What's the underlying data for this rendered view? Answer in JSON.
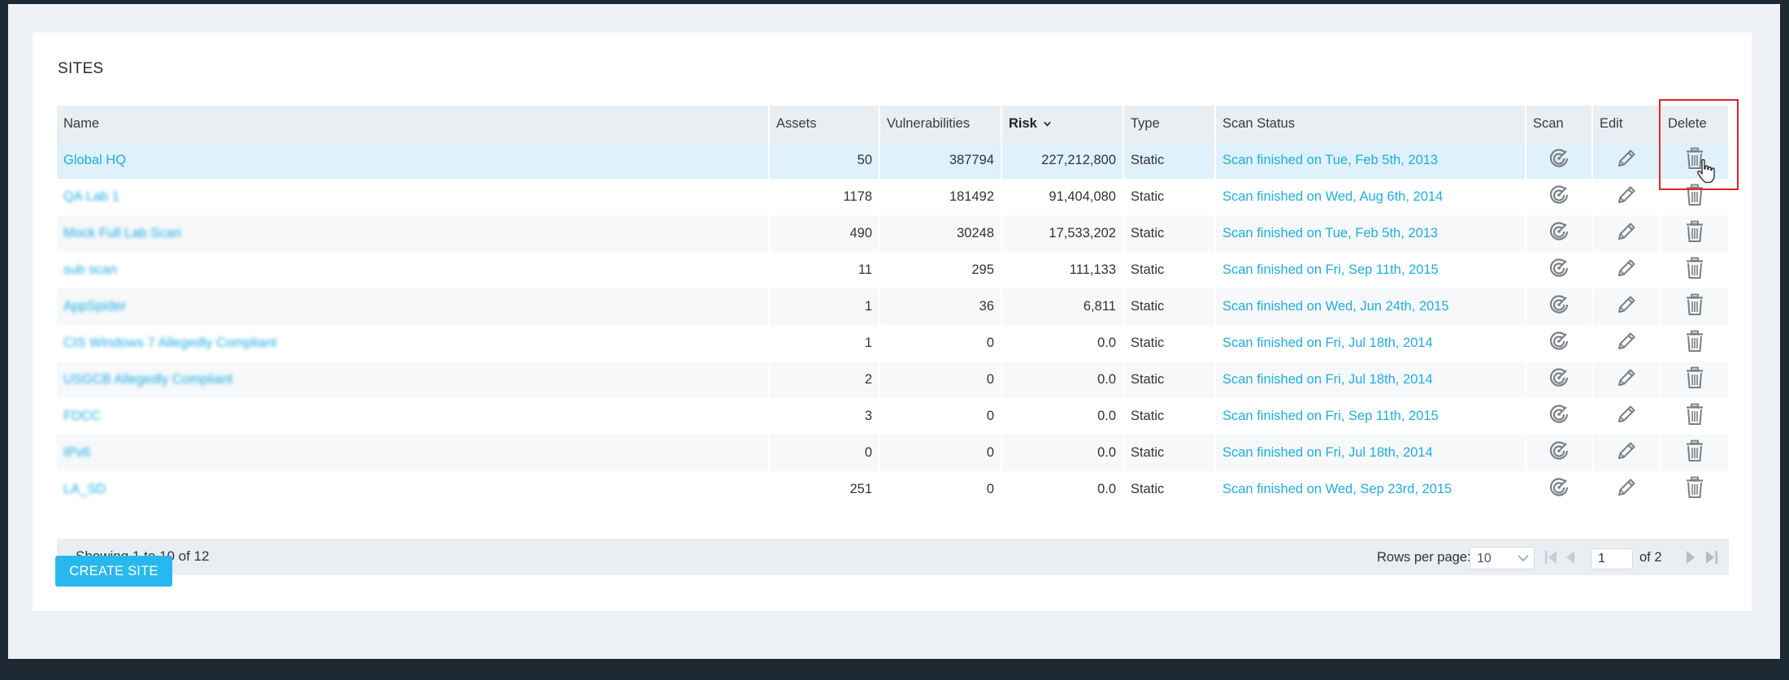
{
  "page": {
    "title": "SITES",
    "create_button": "CREATE SITE"
  },
  "table": {
    "columns": {
      "name": "Name",
      "assets": "Assets",
      "vulnerabilities": "Vulnerabilities",
      "risk": "Risk",
      "type": "Type",
      "scan_status": "Scan Status",
      "scan": "Scan",
      "edit": "Edit",
      "delete": "Delete"
    },
    "sorted_column": "Risk",
    "sort_direction": "descending",
    "rows": [
      {
        "name": "Global HQ",
        "name_blurred": false,
        "selected": true,
        "assets": "50",
        "vulnerabilities": "387794",
        "risk": "227,212,800",
        "type": "Static",
        "status": "Scan finished on Tue, Feb 5th, 2013"
      },
      {
        "name": "QA Lab 1",
        "name_blurred": true,
        "selected": false,
        "assets": "1178",
        "vulnerabilities": "181492",
        "risk": "91,404,080",
        "type": "Static",
        "status": "Scan finished on Wed, Aug 6th, 2014"
      },
      {
        "name": "Mock Full Lab Scan",
        "name_blurred": true,
        "selected": false,
        "assets": "490",
        "vulnerabilities": "30248",
        "risk": "17,533,202",
        "type": "Static",
        "status": "Scan finished on Tue, Feb 5th, 2013"
      },
      {
        "name": "sub scan",
        "name_blurred": true,
        "selected": false,
        "assets": "11",
        "vulnerabilities": "295",
        "risk": "111,133",
        "type": "Static",
        "status": "Scan finished on Fri, Sep 11th, 2015"
      },
      {
        "name": "AppSpider",
        "name_blurred": true,
        "selected": false,
        "assets": "1",
        "vulnerabilities": "36",
        "risk": "6,811",
        "type": "Static",
        "status": "Scan finished on Wed, Jun 24th, 2015"
      },
      {
        "name": "CIS Windows 7 Allegedly Compliant",
        "name_blurred": true,
        "selected": false,
        "assets": "1",
        "vulnerabilities": "0",
        "risk": "0.0",
        "type": "Static",
        "status": "Scan finished on Fri, Jul 18th, 2014"
      },
      {
        "name": "USGCB Allegedly Compliant",
        "name_blurred": true,
        "selected": false,
        "assets": "2",
        "vulnerabilities": "0",
        "risk": "0.0",
        "type": "Static",
        "status": "Scan finished on Fri, Jul 18th, 2014"
      },
      {
        "name": "FDCC",
        "name_blurred": true,
        "selected": false,
        "assets": "3",
        "vulnerabilities": "0",
        "risk": "0.0",
        "type": "Static",
        "status": "Scan finished on Fri, Sep 11th, 2015"
      },
      {
        "name": "IPv6",
        "name_blurred": true,
        "selected": false,
        "assets": "0",
        "vulnerabilities": "0",
        "risk": "0.0",
        "type": "Static",
        "status": "Scan finished on Fri, Jul 18th, 2014"
      },
      {
        "name": "LA_SD",
        "name_blurred": true,
        "selected": false,
        "assets": "251",
        "vulnerabilities": "0",
        "risk": "0.0",
        "type": "Static",
        "status": "Scan finished on Wed, Sep 23rd, 2015"
      }
    ],
    "row_icons": {
      "scan": "scan-target-icon",
      "edit": "pencil-icon",
      "delete": "trash-icon"
    }
  },
  "pagination": {
    "showing": "Showing 1 to 10 of 12",
    "rows_per_page_label": "Rows per page:",
    "rows_per_page_value": "10",
    "current_page": "1",
    "of_pages": "of 2",
    "icons": [
      "first-page-icon",
      "prev-page-icon",
      "next-page-icon",
      "last-page-icon"
    ]
  },
  "colors": {
    "link": "#1eaee3",
    "button": "#29b8ee",
    "header_bg": "#e9eef3",
    "selected_row": "#dff1fa",
    "highlight": "#e0242a"
  }
}
